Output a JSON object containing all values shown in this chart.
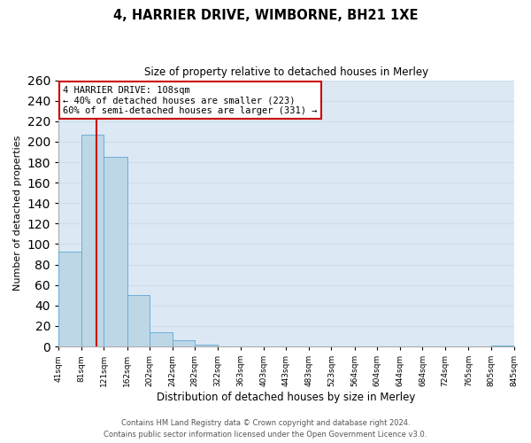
{
  "title1": "4, HARRIER DRIVE, WIMBORNE, BH21 1XE",
  "title2": "Size of property relative to detached houses in Merley",
  "xlabel": "Distribution of detached houses by size in Merley",
  "ylabel": "Number of detached properties",
  "bins": [
    41,
    81,
    121,
    162,
    202,
    242,
    282,
    322,
    363,
    403,
    443,
    483,
    523,
    564,
    604,
    644,
    684,
    724,
    765,
    805,
    845
  ],
  "counts": [
    93,
    207,
    185,
    50,
    14,
    6,
    2,
    0,
    0,
    0,
    0,
    0,
    0,
    0,
    0,
    0,
    0,
    0,
    0,
    1
  ],
  "bar_color": "#bdd7e7",
  "bar_edge_color": "#6baed6",
  "property_line_x": 108,
  "property_line_color": "#cc0000",
  "ylim": [
    0,
    260
  ],
  "yticks": [
    0,
    20,
    40,
    60,
    80,
    100,
    120,
    140,
    160,
    180,
    200,
    220,
    240,
    260
  ],
  "tick_labels": [
    "41sqm",
    "81sqm",
    "121sqm",
    "162sqm",
    "202sqm",
    "242sqm",
    "282sqm",
    "322sqm",
    "363sqm",
    "403sqm",
    "443sqm",
    "483sqm",
    "523sqm",
    "564sqm",
    "604sqm",
    "644sqm",
    "684sqm",
    "724sqm",
    "765sqm",
    "805sqm",
    "845sqm"
  ],
  "annotation_title": "4 HARRIER DRIVE: 108sqm",
  "annotation_line1": "← 40% of detached houses are smaller (223)",
  "annotation_line2": "60% of semi-detached houses are larger (331) →",
  "annotation_box_color": "#ffffff",
  "annotation_box_edge": "#cc0000",
  "footnote1": "Contains HM Land Registry data © Crown copyright and database right 2024.",
  "footnote2": "Contains public sector information licensed under the Open Government Licence v3.0.",
  "grid_color": "#d0dce8",
  "bg_color": "#dce9f5"
}
